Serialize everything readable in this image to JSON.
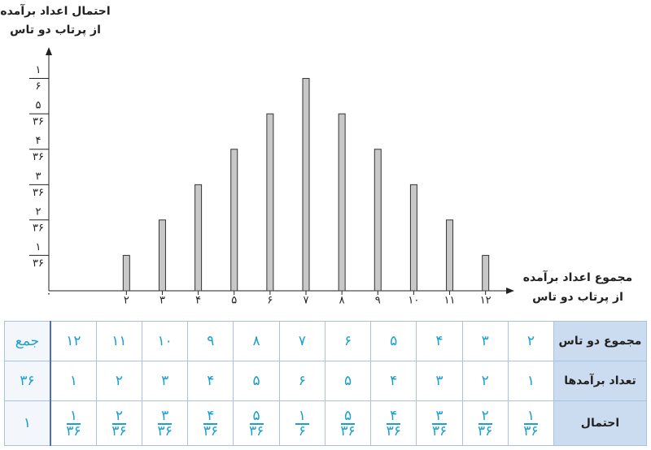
{
  "chart_data": {
    "type": "bar",
    "y_label": [
      "احتمال اعداد برآمده",
      "از پرتاب دو تاس"
    ],
    "x_label": [
      "مجموع اعداد برآمده",
      "از پرتاب دو تاس"
    ],
    "x": [
      2,
      3,
      4,
      5,
      6,
      7,
      8,
      9,
      10,
      11,
      12
    ],
    "values": [
      0.0278,
      0.0556,
      0.0833,
      0.1111,
      0.1389,
      0.1667,
      0.1389,
      0.1111,
      0.0833,
      0.0556,
      0.0278
    ],
    "color": "#c8c8c8",
    "xlim": [
      -0.16,
      12.8
    ],
    "xticks": [
      {
        "value": 2,
        "label": "۲"
      },
      {
        "value": 3,
        "label": "۳"
      },
      {
        "value": 4,
        "label": "۴"
      },
      {
        "value": 5,
        "label": "۵"
      },
      {
        "value": 6,
        "label": "۶"
      },
      {
        "value": 7,
        "label": "۷"
      },
      {
        "value": 8,
        "label": "۸"
      },
      {
        "value": 9,
        "label": "۹"
      },
      {
        "value": 10,
        "label": "۱۰"
      },
      {
        "value": 11,
        "label": "۱۱"
      },
      {
        "value": 12,
        "label": "۱۲"
      }
    ],
    "ylim": [
      0,
      0.19
    ],
    "yticks": [
      {
        "value": 0,
        "label": [
          "۰"
        ]
      },
      {
        "value": 0.0278,
        "label": [
          "۱",
          "۳۶"
        ]
      },
      {
        "value": 0.0556,
        "label": [
          "۲",
          "۳۶"
        ]
      },
      {
        "value": 0.0833,
        "label": [
          "۳",
          "۳۶"
        ]
      },
      {
        "value": 0.1111,
        "label": [
          "۴",
          "۳۶"
        ]
      },
      {
        "value": 0.1389,
        "label": [
          "۵",
          "۳۶"
        ]
      },
      {
        "value": 0.1667,
        "label": [
          "۱",
          "۶"
        ]
      }
    ]
  },
  "table": {
    "rows": [
      [
        "مجموع دو تاس",
        "۲",
        "۳",
        "۴",
        "۵",
        "۶",
        "۷",
        "۸",
        "۹",
        "۱۰",
        "۱۱",
        "۱۲",
        "جمع"
      ],
      [
        "تعداد برآمدها",
        "۱",
        "۲",
        "۳",
        "۴",
        "۵",
        "۶",
        "۵",
        "۴",
        "۳",
        "۲",
        "۱",
        "۳۶"
      ],
      [
        "احتمال",
        [
          "۱",
          "۳۶"
        ],
        [
          "۲",
          "۳۶"
        ],
        [
          "۳",
          "۳۶"
        ],
        [
          "۴",
          "۳۶"
        ],
        [
          "۵",
          "۳۶"
        ],
        [
          "۱",
          "۶"
        ],
        [
          "۵",
          "۳۶"
        ],
        [
          "۴",
          "۳۶"
        ],
        [
          "۳",
          "۳۶"
        ],
        [
          "۲",
          "۳۶"
        ],
        [
          "۱",
          "۳۶"
        ],
        "۱"
      ]
    ]
  }
}
